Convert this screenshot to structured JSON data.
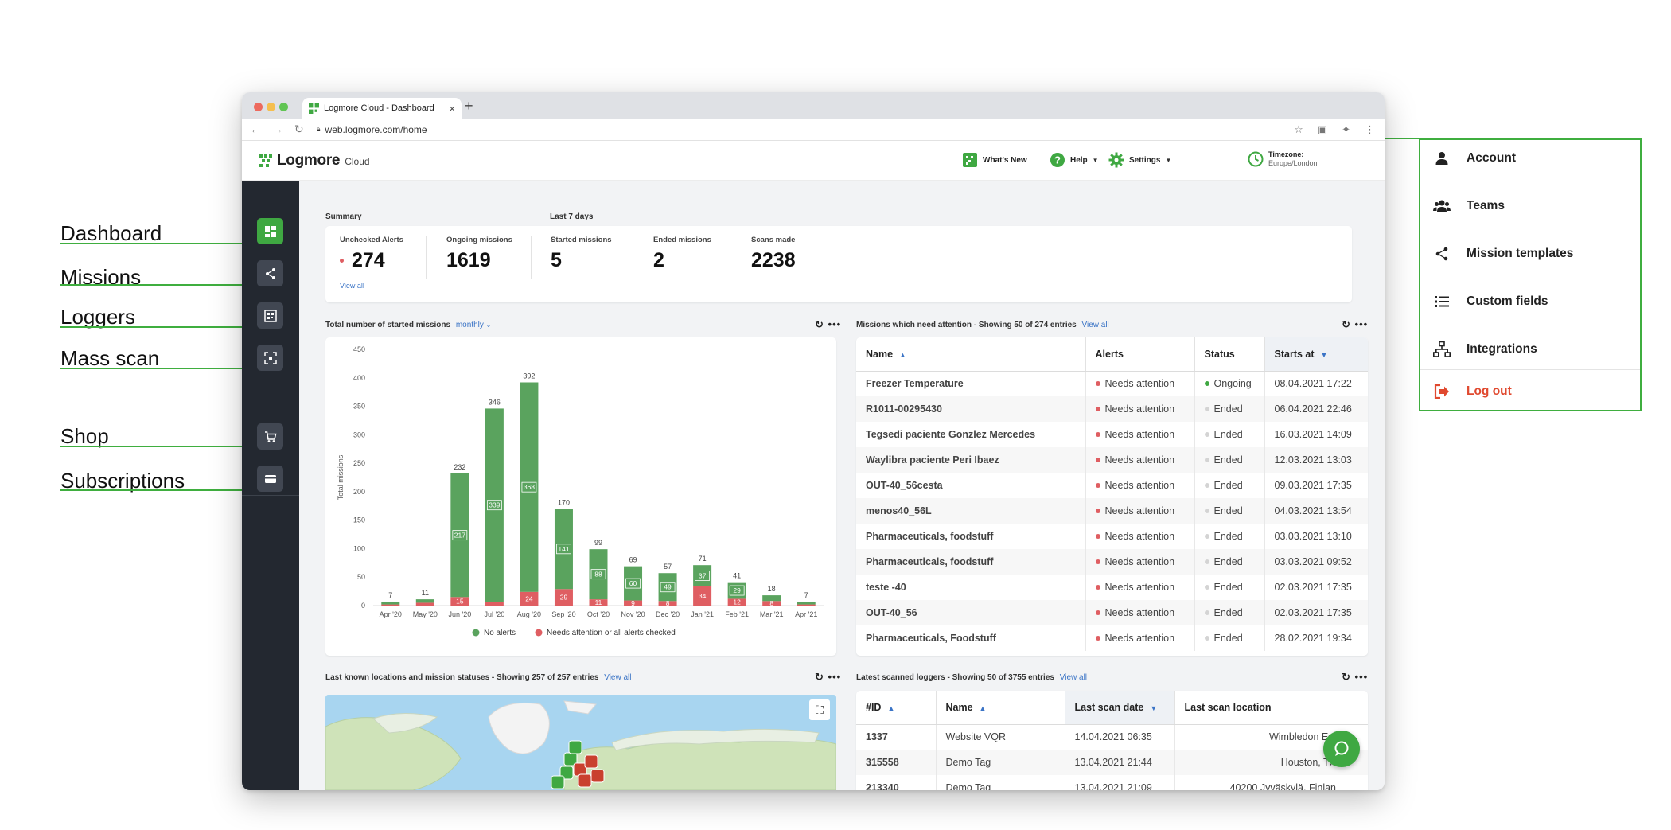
{
  "annotations": [
    "Dashboard",
    "Missions",
    "Loggers",
    "Mass scan",
    "Shop",
    "Subscriptions"
  ],
  "browser": {
    "tab_title": "Logmore Cloud - Dashboard",
    "url": "web.logmore.com/home"
  },
  "header": {
    "logo_name": "Logmore",
    "logo_sub": "Cloud",
    "whats_new": "What's New",
    "help": "Help",
    "settings": "Settings",
    "timezone_label": "Timezone:",
    "timezone_value": "Europe/London"
  },
  "sidebar": {
    "items": [
      {
        "name": "dashboard",
        "icon": "dashboard-icon",
        "active": true
      },
      {
        "name": "missions",
        "icon": "share-icon",
        "active": false
      },
      {
        "name": "loggers",
        "icon": "qr-icon",
        "active": false
      },
      {
        "name": "mass-scan",
        "icon": "scan-icon",
        "active": false
      },
      {
        "name": "shop",
        "icon": "cart-icon",
        "active": false
      },
      {
        "name": "subscriptions",
        "icon": "card-icon",
        "active": false
      }
    ]
  },
  "summary": {
    "label": "Summary",
    "last7_label": "Last 7 days",
    "stats": [
      {
        "label": "Unchecked Alerts",
        "value": "274"
      },
      {
        "label": "Ongoing missions",
        "value": "1619"
      },
      {
        "label": "Started missions",
        "value": "5"
      },
      {
        "label": "Ended missions",
        "value": "2"
      },
      {
        "label": "Scans made",
        "value": "2238"
      }
    ],
    "view_all": "View all"
  },
  "chart_section": {
    "title": "Total number of started missions",
    "period": "monthly"
  },
  "chart_data": {
    "type": "bar",
    "stacked": true,
    "ylabel": "Total missions",
    "xlabel": "",
    "ylim": [
      0,
      450
    ],
    "yticks": [
      0,
      50,
      100,
      150,
      200,
      250,
      300,
      350,
      400,
      450
    ],
    "categories": [
      "Apr '20",
      "May '20",
      "Jun '20",
      "Jul '20",
      "Aug '20",
      "Sep '20",
      "Oct '20",
      "Nov '20",
      "Dec '20",
      "Jan '21",
      "Feb '21",
      "Mar '21",
      "Apr '21"
    ],
    "totals": [
      7,
      11,
      232,
      346,
      392,
      170,
      99,
      69,
      57,
      71,
      41,
      18,
      7
    ],
    "series": [
      {
        "name": "No alerts",
        "color": "#5aa35e",
        "values": [
          5,
          6,
          217,
          339,
          368,
          141,
          88,
          60,
          49,
          37,
          29,
          10,
          5
        ]
      },
      {
        "name": "Needs attention or all alerts checked",
        "color": "#df5e62",
        "values": [
          2,
          5,
          15,
          7,
          24,
          29,
          11,
          9,
          8,
          34,
          12,
          8,
          2
        ]
      }
    ],
    "legend_position": "bottom",
    "grid": false
  },
  "missions_table": {
    "title": "Missions which need attention - Showing 50 of 274 entries",
    "view_all": "View all",
    "columns": [
      "Name",
      "Alerts",
      "Status",
      "Starts at"
    ],
    "rows": [
      {
        "name": "Freezer Temperature",
        "alert": "Needs attention",
        "status": "Ongoing",
        "starts": "08.04.2021 17:22"
      },
      {
        "name": "R1011-00295430",
        "alert": "Needs attention",
        "status": "Ended",
        "starts": "06.04.2021 22:46"
      },
      {
        "name": "Tegsedi paciente Gonzlez Mercedes",
        "alert": "Needs attention",
        "status": "Ended",
        "starts": "16.03.2021 14:09"
      },
      {
        "name": "Waylibra paciente Peri Ibaez",
        "alert": "Needs attention",
        "status": "Ended",
        "starts": "12.03.2021 13:03"
      },
      {
        "name": "OUT-40_56cesta",
        "alert": "Needs attention",
        "status": "Ended",
        "starts": "09.03.2021 17:35"
      },
      {
        "name": "menos40_56L",
        "alert": "Needs attention",
        "status": "Ended",
        "starts": "04.03.2021 13:54"
      },
      {
        "name": "Pharmaceuticals, foodstuff",
        "alert": "Needs attention",
        "status": "Ended",
        "starts": "03.03.2021 13:10"
      },
      {
        "name": "Pharmaceuticals, foodstuff",
        "alert": "Needs attention",
        "status": "Ended",
        "starts": "03.03.2021 09:52"
      },
      {
        "name": "teste -40",
        "alert": "Needs attention",
        "status": "Ended",
        "starts": "02.03.2021 17:35"
      },
      {
        "name": "OUT-40_56",
        "alert": "Needs attention",
        "status": "Ended",
        "starts": "02.03.2021 17:35"
      },
      {
        "name": "Pharmaceuticals, Foodstuff",
        "alert": "Needs attention",
        "status": "Ended",
        "starts": "28.02.2021 19:34"
      }
    ]
  },
  "map_section": {
    "title": "Last known locations and mission statuses - Showing 257 of 257 entries",
    "view_all": "View all"
  },
  "loggers_table": {
    "title": "Latest scanned loggers - Showing 50 of 3755 entries",
    "view_all": "View all",
    "columns": [
      "#ID",
      "Name",
      "Last scan date",
      "Last scan location"
    ],
    "rows": [
      {
        "id": "1337",
        "name": "Website VQR",
        "date": "14.04.2021 06:35",
        "location": "Wimbledon Est"
      },
      {
        "id": "315558",
        "name": "Demo Tag",
        "date": "13.04.2021 21:44",
        "location": "Houston, TX"
      },
      {
        "id": "213340",
        "name": "Demo Tag",
        "date": "13.04.2021 21:09",
        "location": "40200 Jyväskylä, Finlan"
      }
    ]
  },
  "settings_menu": {
    "items": [
      {
        "label": "Account",
        "icon": "user-icon"
      },
      {
        "label": "Teams",
        "icon": "users-icon"
      },
      {
        "label": "Mission templates",
        "icon": "share-icon"
      },
      {
        "label": "Custom fields",
        "icon": "list-icon"
      },
      {
        "label": "Integrations",
        "icon": "sitemap-icon"
      }
    ],
    "logout": "Log out"
  },
  "colors": {
    "brand_green": "#3fa842",
    "annotation_green": "#3fae3f",
    "link_blue": "#3b74c6",
    "alert_red": "#df5e62",
    "logout_red": "#e0492f"
  }
}
